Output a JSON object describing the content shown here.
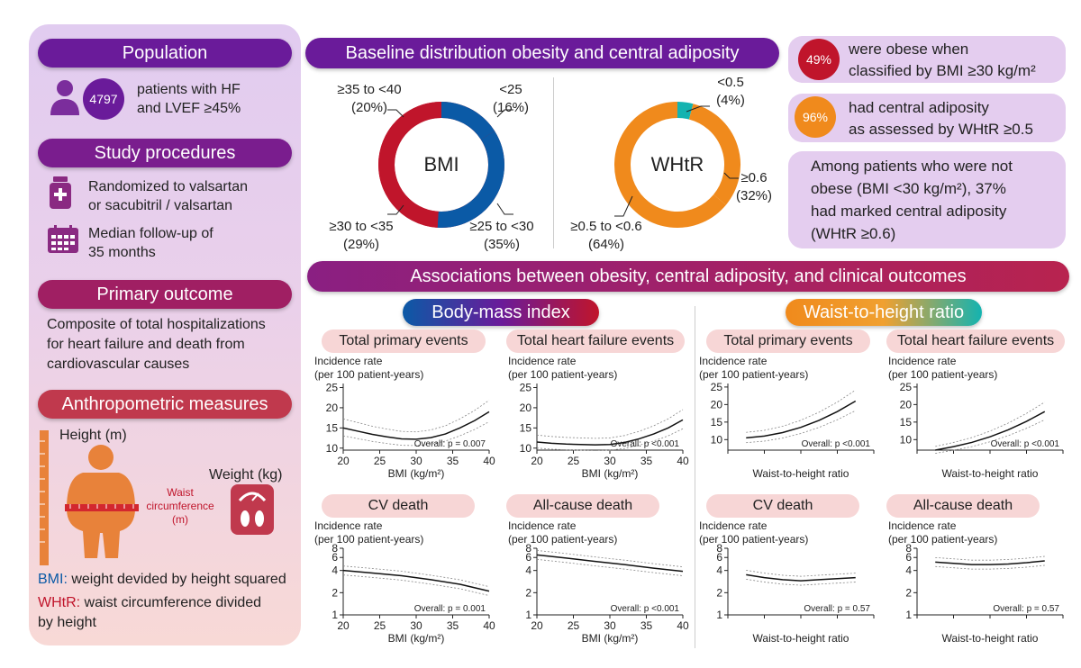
{
  "left": {
    "population": {
      "title": "Population",
      "count": "4797",
      "text1": "patients with HF",
      "text2": "and LVEF ≥45%"
    },
    "procedures": {
      "title": "Study procedures",
      "rand1": "Randomized to valsartan",
      "rand2": "or sacubitril / valsartan",
      "fu1": "Median follow-up of",
      "fu2": "35 months"
    },
    "primary": {
      "title": "Primary outcome",
      "l1": "Composite of total hospitalizations",
      "l2": "for heart failure and death from",
      "l3": "cardiovascular causes"
    },
    "anthro": {
      "title": "Anthropometric measures",
      "height": "Height (m)",
      "weight": "Weight (kg)",
      "waist1": "Waist",
      "waist2": "circumference",
      "waist3": "(m)",
      "bmi_key": "BMI:",
      "bmi_def": " weight devided by height squared",
      "whtr_key": "WHtR:",
      "whtr_def1": " waist circumference divided",
      "whtr_def2": "by height"
    }
  },
  "baseline": {
    "title": "Baseline distribution obesity and central adiposity",
    "bmi": {
      "center": "BMI",
      "seg1": "<25",
      "pct1": "(16%)",
      "seg2": "≥25 to <30",
      "pct2": "(35%)",
      "seg3": "≥30 to <35",
      "pct3": "(29%)",
      "seg4": "≥35 to <40",
      "pct4": "(20%)"
    },
    "whtr": {
      "center": "WHtR",
      "seg1": "<0.5",
      "pct1": "(4%)",
      "seg2": "≥0.6",
      "pct2": "(32%)",
      "seg3": "≥0.5 to <0.6",
      "pct3": "(64%)"
    }
  },
  "facts": {
    "obese_pct": "49%",
    "obese1": "were obese when",
    "obese2": "classified by BMI ≥30 kg/m²",
    "central_pct": "96%",
    "central1": "had central adiposity",
    "central2": "as assessed by WHtR ≥0.5",
    "among1": "Among patients who were not",
    "among2": "obese (BMI <30 kg/m²), 37%",
    "among3": "had marked central adiposity",
    "among4": "(WHtR ≥0.6)"
  },
  "assoc": {
    "title": "Associations between obesity, central adiposity, and clinical outcomes",
    "bmi_header": "Body-mass index",
    "whtr_header": "Waist-to-height ratio"
  },
  "colors": {
    "purple": "#6a1b9a",
    "magenta": "#9c1b6e",
    "red": "#c0152b",
    "blue": "#0b5aa6",
    "orange": "#f08a1c",
    "teal": "#14b3b0"
  },
  "chart_data": [
    {
      "type": "line",
      "title": "Total primary events",
      "ylabel": "Incidence rate (per 100 patient-years)",
      "xlabel": "BMI (kg/m²)",
      "xlim": [
        20,
        40
      ],
      "xticks": [
        "20",
        "25",
        "30",
        "35",
        "40"
      ],
      "yticks": [
        "10",
        "15",
        "20",
        "25"
      ],
      "annotation": "Overall: p = 0.007",
      "series": [
        {
          "x": [
            20,
            22,
            24,
            26,
            28,
            30,
            32,
            34,
            36,
            38,
            40
          ],
          "y": [
            15,
            14.2,
            13.4,
            12.8,
            12.3,
            12.2,
            12.6,
            13.5,
            15,
            16.8,
            19
          ]
        }
      ]
    },
    {
      "type": "line",
      "title": "Total heart failure events",
      "ylabel": "Incidence rate (per 100 patient-years)",
      "xlabel": "BMI (kg/m²)",
      "xlim": [
        20,
        40
      ],
      "xticks": [
        "20",
        "25",
        "30",
        "35",
        "40"
      ],
      "yticks": [
        "10",
        "15",
        "20",
        "25"
      ],
      "annotation": "Overall: p <0.001",
      "series": [
        {
          "x": [
            20,
            22,
            24,
            26,
            28,
            30,
            32,
            34,
            36,
            38,
            40
          ],
          "y": [
            11.5,
            11.2,
            11,
            10.9,
            10.8,
            10.9,
            11.4,
            12.3,
            13.5,
            15,
            17
          ]
        }
      ]
    },
    {
      "type": "line",
      "title": "Total primary events",
      "ylabel": "Incidence rate (per 100 patient-years)",
      "xlabel": "Waist-to-height ratio",
      "xticks": [
        "0.4",
        "0.5",
        "0.6",
        "0.7",
        "0.8"
      ],
      "yticks": [
        "10",
        "15",
        "20",
        "25"
      ],
      "annotation": "Overall: p <0.001",
      "series": [
        {
          "x": [
            0.45,
            0.5,
            0.55,
            0.6,
            0.65,
            0.7,
            0.75
          ],
          "y": [
            10.5,
            11,
            12,
            13.5,
            15.5,
            18,
            21
          ]
        }
      ]
    },
    {
      "type": "line",
      "title": "Total heart failure events",
      "ylabel": "Incidence rate (per 100 patient-years)",
      "xlabel": "Waist-to-height ratio",
      "xticks": [
        "0.4",
        "0.5",
        "0.6",
        "0.7",
        "0.8"
      ],
      "yticks": [
        "10",
        "15",
        "20",
        "25"
      ],
      "annotation": "Overall: p <0.001",
      "series": [
        {
          "x": [
            0.45,
            0.5,
            0.55,
            0.6,
            0.65,
            0.7,
            0.75
          ],
          "y": [
            7,
            8,
            9.2,
            10.8,
            12.8,
            15.2,
            18
          ]
        }
      ]
    },
    {
      "type": "line",
      "title": "CV death",
      "ylabel": "Incidence rate (per 100 patient-years)",
      "xlabel": "BMI (kg/m²)",
      "xlim": [
        20,
        40
      ],
      "xticks": [
        "20",
        "25",
        "30",
        "35",
        "40"
      ],
      "yticks": [
        "1",
        "2",
        "4",
        "6",
        "8"
      ],
      "annotation": "Overall: p = 0.001",
      "series": [
        {
          "x": [
            20,
            24,
            28,
            32,
            36,
            40
          ],
          "y": [
            4,
            3.7,
            3.4,
            3,
            2.6,
            2.1
          ]
        }
      ]
    },
    {
      "type": "line",
      "title": "All-cause death",
      "ylabel": "Incidence rate (per 100 patient-years)",
      "xlabel": "BMI (kg/m²)",
      "xlim": [
        20,
        40
      ],
      "xticks": [
        "20",
        "25",
        "30",
        "35",
        "40"
      ],
      "yticks": [
        "1",
        "2",
        "4",
        "6",
        "8"
      ],
      "annotation": "Overall: p <0.001",
      "series": [
        {
          "x": [
            20,
            24,
            28,
            32,
            36,
            40
          ],
          "y": [
            6.5,
            5.9,
            5.3,
            4.8,
            4.3,
            3.9
          ]
        }
      ]
    },
    {
      "type": "line",
      "title": "CV death",
      "ylabel": "Incidence rate (per 100 patient-years)",
      "xlabel": "Waist-to-height ratio",
      "xticks": [
        "0.4",
        "0.5",
        "0.6",
        "0.7",
        "0.8"
      ],
      "yticks": [
        "1",
        "2",
        "4",
        "6",
        "8"
      ],
      "annotation": "Overall: p = 0.57",
      "series": [
        {
          "x": [
            0.45,
            0.5,
            0.55,
            0.6,
            0.65,
            0.7,
            0.75
          ],
          "y": [
            3.5,
            3.2,
            3,
            2.9,
            3,
            3.1,
            3.2
          ]
        }
      ]
    },
    {
      "type": "line",
      "title": "All-cause death",
      "ylabel": "Incidence rate (per 100 patient-years)",
      "xlabel": "Waist-to-height ratio",
      "xticks": [
        "0.4",
        "0.5",
        "0.6",
        "0.7",
        "0.8"
      ],
      "yticks": [
        "1",
        "2",
        "4",
        "6",
        "8"
      ],
      "annotation": "Overall: p = 0.57",
      "series": [
        {
          "x": [
            0.45,
            0.5,
            0.55,
            0.6,
            0.65,
            0.7,
            0.75
          ],
          "y": [
            5.2,
            5,
            4.8,
            4.8,
            4.9,
            5.1,
            5.4
          ]
        }
      ]
    }
  ]
}
